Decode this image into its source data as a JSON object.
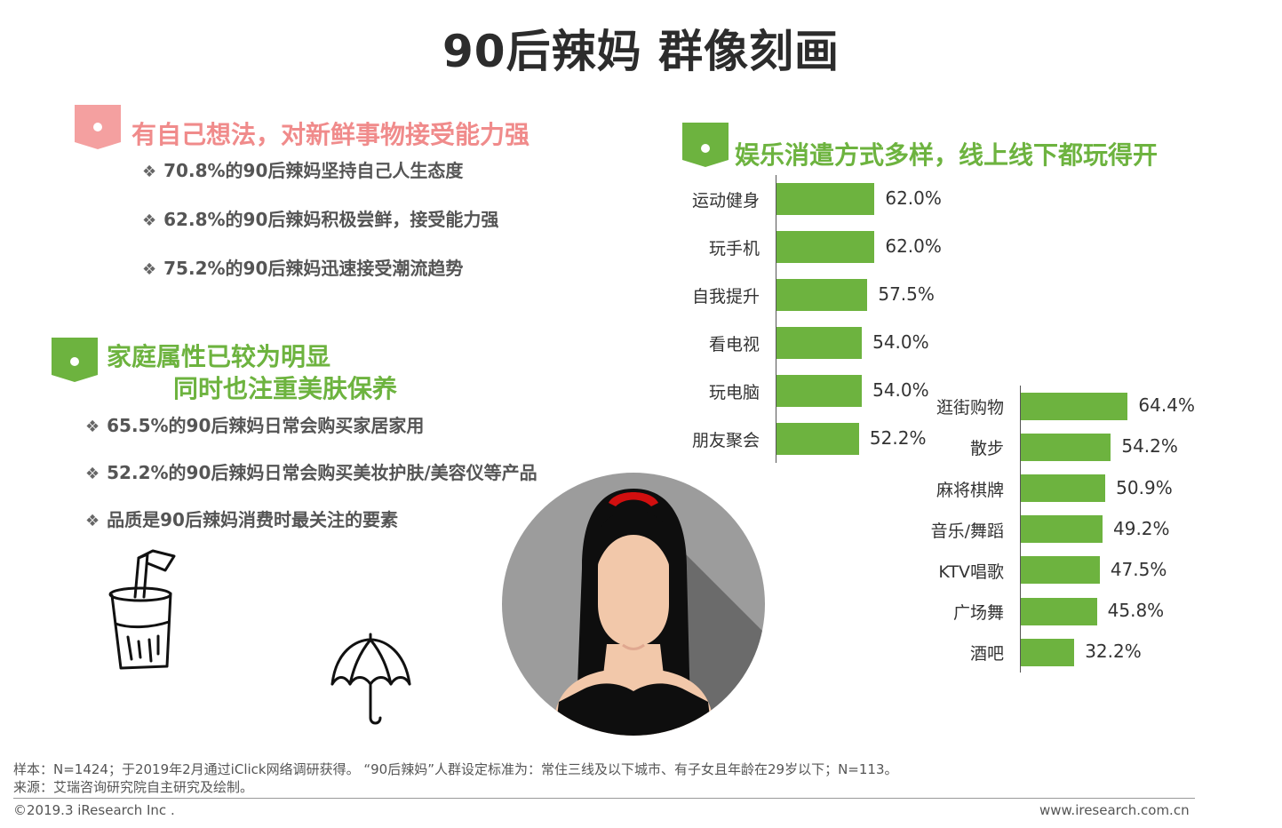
{
  "title": "90后辣妈 群像刻画",
  "section1": {
    "heading": "有自己想法，对新鲜事物接受能力强",
    "bullets": [
      "70.8%的90后辣妈坚持自己人生态度",
      "62.8%的90后辣妈积极尝鲜，接受能力强",
      "75.2%的90后辣妈迅速接受潮流趋势"
    ]
  },
  "section2": {
    "heading_line1": "家庭属性已较为明显",
    "heading_line2": "同时也注重美肤保养",
    "bullets": [
      "65.5%的90后辣妈日常会购买家居家用",
      "52.2%的90后辣妈日常会购买美妆护肤/美容仪等产品",
      "品质是90后辣妈消费时最关注的要素"
    ]
  },
  "section3": {
    "heading": "娱乐消遣方式多样，线上线下都玩得开"
  },
  "bullet_symbol": "❖",
  "colors": {
    "pink": "#f08b8b",
    "green": "#6db33f",
    "text": "#555555"
  },
  "chart_data": [
    {
      "type": "bar",
      "orientation": "horizontal",
      "categories": [
        "运动健身",
        "玩手机",
        "自我提升",
        "看电视",
        "玩电脑",
        "朋友聚会"
      ],
      "values": [
        62.0,
        62.0,
        57.5,
        54.0,
        54.0,
        52.2
      ],
      "labels": [
        "62.0%",
        "62.0%",
        "57.5%",
        "54.0%",
        "54.0%",
        "52.2%"
      ],
      "unit": "%",
      "color": "#6db33f"
    },
    {
      "type": "bar",
      "orientation": "horizontal",
      "categories": [
        "逛街购物",
        "散步",
        "麻将棋牌",
        "音乐/舞蹈",
        "KTV唱歌",
        "广场舞",
        "酒吧"
      ],
      "values": [
        64.4,
        54.2,
        50.9,
        49.2,
        47.5,
        45.8,
        32.2
      ],
      "labels": [
        "64.4%",
        "54.2%",
        "50.9%",
        "49.2%",
        "47.5%",
        "45.8%",
        "32.2%"
      ],
      "unit": "%",
      "color": "#6db33f"
    }
  ],
  "footer": {
    "sample": "样本：N=1424；于2019年2月通过iClick网络调研获得。 “90后辣妈”人群设定标准为：常住三线及以下城市、有子女且年龄在29岁以下；N=113。",
    "source": "来源：艾瑞咨询研究院自主研究及绘制。",
    "copyright": "©2019.3 iResearch Inc .",
    "website": "www.iresearch.com.cn"
  }
}
